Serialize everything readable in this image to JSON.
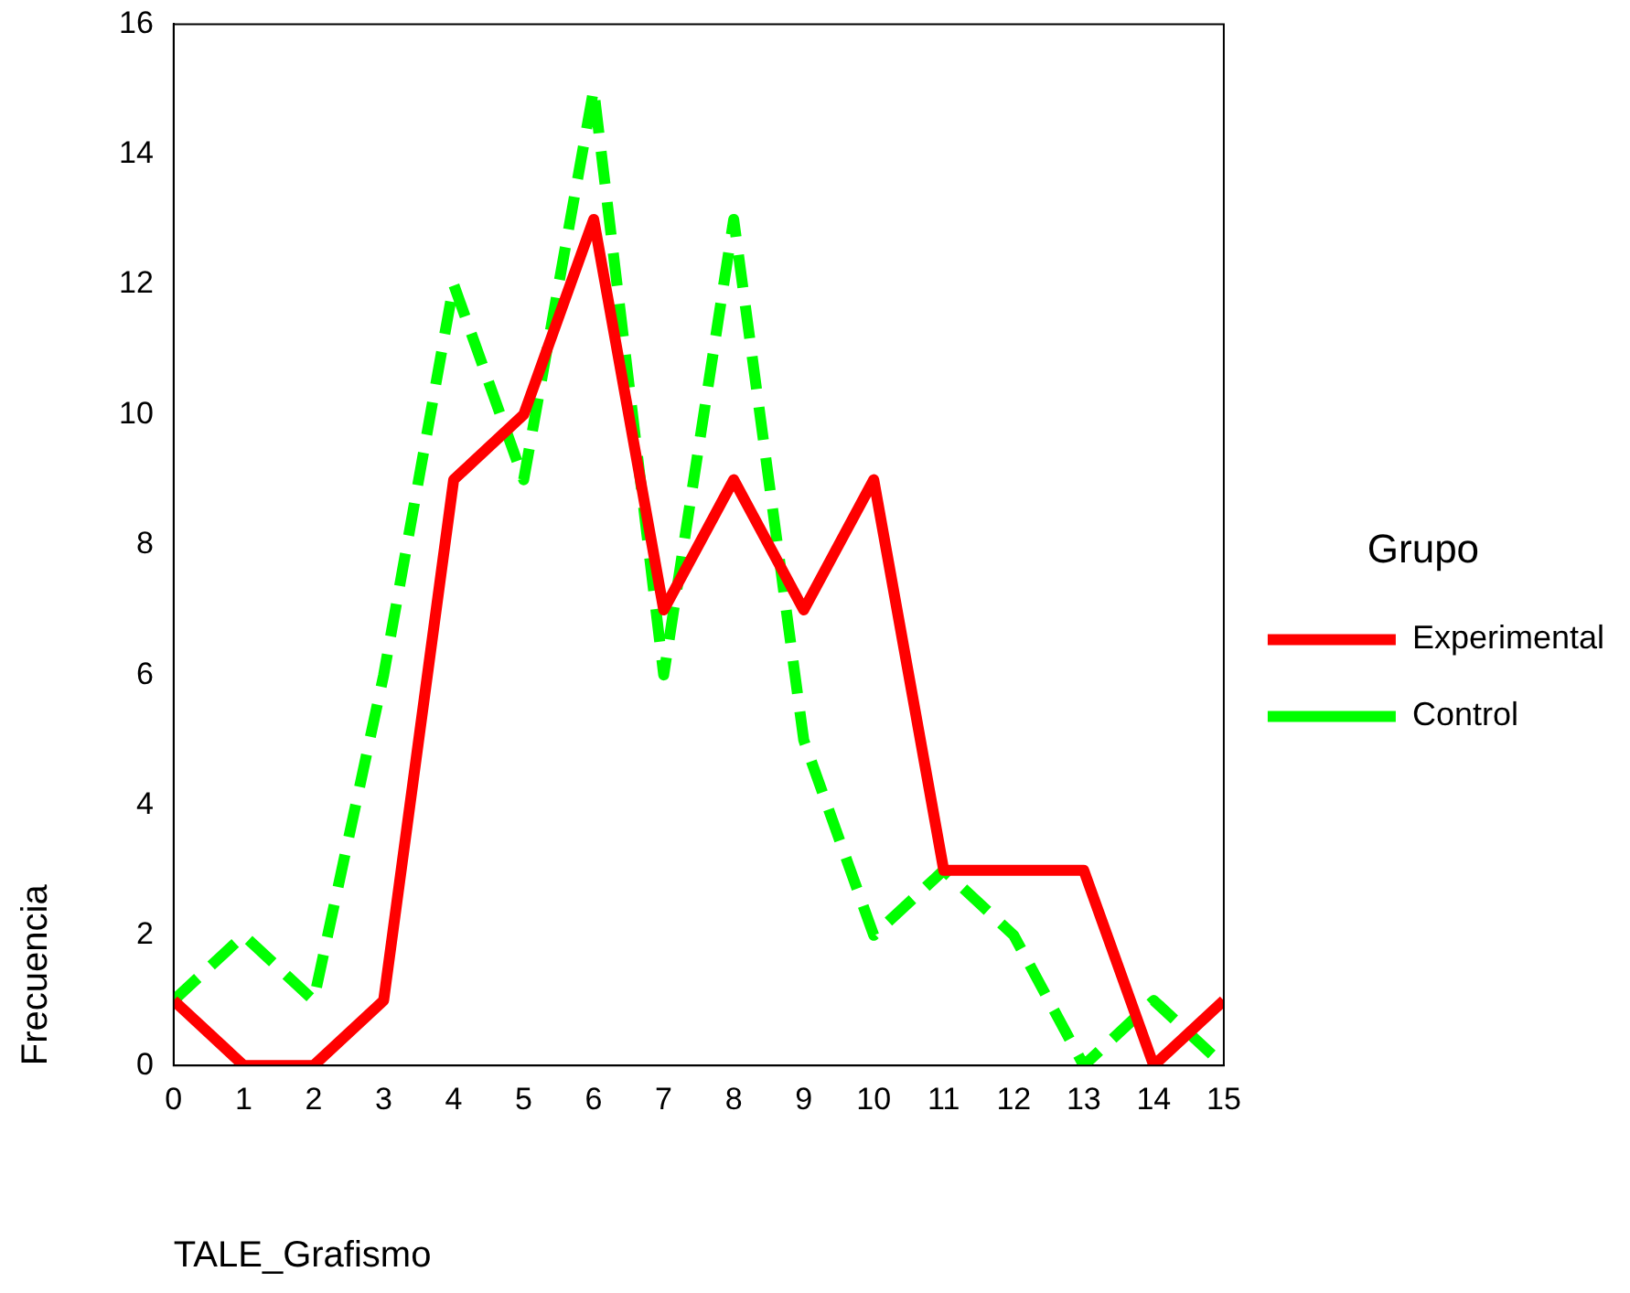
{
  "chart_data": {
    "type": "line",
    "xlabel": "TALE_Grafismo",
    "ylabel": "Frecuencia",
    "legend_title": "Grupo",
    "x": [
      0,
      1,
      2,
      3,
      4,
      5,
      6,
      7,
      8,
      9,
      10,
      11,
      12,
      13,
      14,
      15
    ],
    "series": [
      {
        "name": "Experimental",
        "color": "#ff0000",
        "line_style": "solid",
        "values": [
          1,
          0,
          0,
          1,
          9,
          10,
          13,
          7,
          9,
          7,
          9,
          3,
          3,
          3,
          0,
          1
        ]
      },
      {
        "name": "Control",
        "color": "#00ff00",
        "line_style": "dashed",
        "values": [
          1,
          2,
          1,
          6,
          12,
          9,
          15,
          6,
          13,
          5,
          2,
          3,
          2,
          0,
          1,
          0
        ]
      }
    ],
    "xlim": [
      0,
      15
    ],
    "xticks": [
      0,
      1,
      2,
      3,
      4,
      5,
      6,
      7,
      8,
      9,
      10,
      11,
      12,
      13,
      14,
      15
    ],
    "ylim": [
      0,
      16
    ],
    "yticks": [
      0,
      2,
      4,
      6,
      8,
      10,
      12,
      14,
      16
    ],
    "grid": false,
    "legend": "right",
    "marker": "none"
  }
}
